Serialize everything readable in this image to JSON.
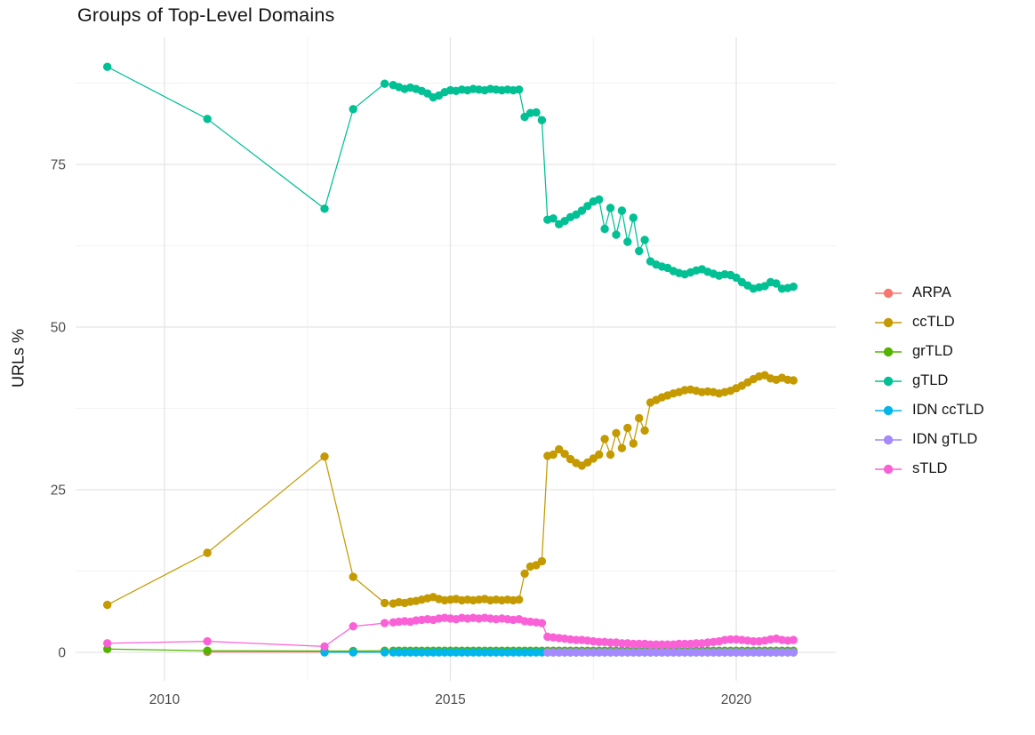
{
  "chart_data": {
    "type": "line",
    "title": "Groups of Top-Level Domains",
    "xlabel": "",
    "ylabel": "URLs %",
    "x_ticks": [
      2010,
      2015,
      2020
    ],
    "x_minor_ticks": [
      2012.5,
      2017.5
    ],
    "y_ticks": [
      0,
      25,
      50,
      75
    ],
    "y_minor_ticks": [
      12.5,
      37.5,
      62.5,
      87.5
    ],
    "xlim": [
      2008.45,
      2021.7
    ],
    "ylim": [
      -4.4,
      94.6
    ],
    "grid": true,
    "legend_position": "right",
    "axis_text_color": "#4d4d4d",
    "major_grid_color": "#e5e5e5",
    "minor_grid_color": "#f3f3f3",
    "series": [
      {
        "name": "ARPA",
        "color": "#F8766D",
        "x_head": [
          2010.75,
          2012.8,
          2013.3,
          2013.85
        ],
        "y_head": [
          0.05,
          0.05,
          0.05,
          0.05
        ],
        "flat": {
          "from": 2014.0,
          "to": 2021.0,
          "step": 0.1,
          "value": 0.05
        }
      },
      {
        "name": "ccTLD",
        "color": "#C49A00",
        "x_head": [
          2009.0,
          2010.75,
          2012.8,
          2013.3,
          2013.85
        ],
        "y_head": [
          7.3,
          15.3,
          30.1,
          11.6,
          7.6
        ],
        "dense": {
          "start": 2014.0,
          "step": 0.1,
          "y": [
            7.5,
            7.7,
            7.6,
            7.8,
            7.9,
            8.1,
            8.3,
            8.5,
            8.2,
            8.0,
            8.1,
            8.2,
            8.0,
            8.1,
            8.0,
            8.1,
            8.2,
            8.0,
            8.1,
            8.0,
            8.1,
            8.0,
            8.1,
            12.1,
            13.2,
            13.4,
            14.0,
            30.2,
            30.4,
            31.2,
            30.5,
            29.7,
            29.1,
            28.7,
            29.2,
            29.8,
            30.4,
            32.8,
            30.4,
            33.7,
            31.4,
            34.5,
            32.1,
            36.0,
            34.1,
            38.4,
            38.8,
            39.2,
            39.5,
            39.8,
            40.0,
            40.3,
            40.4,
            40.2,
            40.0,
            40.1,
            40.0,
            39.8,
            40.0,
            40.2,
            40.6,
            41.0,
            41.5,
            42.0,
            42.4,
            42.6,
            42.1,
            41.9,
            42.2,
            41.9,
            41.8
          ]
        }
      },
      {
        "name": "grTLD",
        "color": "#53B400",
        "x_head": [
          2009.0,
          2010.75,
          2012.8,
          2013.3,
          2013.85
        ],
        "y_head": [
          0.5,
          0.25,
          0.2,
          0.2,
          0.25
        ],
        "flat": {
          "from": 2014.0,
          "to": 2021.0,
          "step": 0.1,
          "value": 0.25
        }
      },
      {
        "name": "gTLD",
        "color": "#00C094",
        "x_head": [
          2009.0,
          2010.75,
          2012.8,
          2013.3,
          2013.85
        ],
        "y_head": [
          90.0,
          82.0,
          68.2,
          83.5,
          87.4
        ],
        "dense": {
          "start": 2014.0,
          "step": 0.1,
          "y": [
            87.2,
            86.9,
            86.6,
            86.8,
            86.6,
            86.3,
            85.9,
            85.3,
            85.6,
            86.1,
            86.4,
            86.3,
            86.5,
            86.4,
            86.6,
            86.5,
            86.4,
            86.6,
            86.5,
            86.4,
            86.5,
            86.4,
            86.5,
            82.3,
            82.9,
            83.0,
            81.8,
            66.5,
            66.7,
            65.8,
            66.3,
            66.9,
            67.3,
            67.9,
            68.6,
            69.3,
            69.6,
            65.1,
            68.3,
            64.2,
            67.9,
            63.1,
            66.8,
            61.7,
            63.4,
            60.1,
            59.6,
            59.3,
            59.1,
            58.6,
            58.3,
            58.1,
            58.4,
            58.7,
            58.9,
            58.5,
            58.2,
            57.9,
            58.1,
            58.0,
            57.6,
            56.9,
            56.4,
            55.9,
            56.1,
            56.3,
            56.9,
            56.7,
            55.9,
            56.0,
            56.2
          ]
        }
      },
      {
        "name": "IDN ccTLD",
        "color": "#00B6EB",
        "x_head": [
          2012.8,
          2013.3,
          2013.85
        ],
        "y_head": [
          0.0,
          0.0,
          0.0
        ],
        "flat": {
          "from": 2014.0,
          "to": 2021.0,
          "step": 0.1,
          "value": 0.0
        }
      },
      {
        "name": "IDN gTLD",
        "color": "#A58AFF",
        "x_head": [],
        "y_head": [],
        "flat": {
          "from": 2016.7,
          "to": 2021.0,
          "step": 0.1,
          "value": 0.0
        }
      },
      {
        "name": "sTLD",
        "color": "#FB61D7",
        "x_head": [
          2009.0,
          2010.75,
          2012.8,
          2013.3,
          2013.85
        ],
        "y_head": [
          1.4,
          1.7,
          0.9,
          4.0,
          4.5
        ],
        "dense": {
          "start": 2014.0,
          "step": 0.1,
          "y": [
            4.6,
            4.7,
            4.8,
            4.7,
            4.9,
            5.0,
            5.1,
            5.0,
            5.2,
            5.3,
            5.2,
            5.1,
            5.3,
            5.2,
            5.3,
            5.2,
            5.3,
            5.2,
            5.1,
            5.2,
            5.1,
            5.0,
            5.1,
            4.8,
            4.7,
            4.6,
            4.5,
            2.4,
            2.3,
            2.2,
            2.1,
            2.0,
            1.9,
            1.9,
            1.8,
            1.7,
            1.6,
            1.6,
            1.5,
            1.5,
            1.4,
            1.4,
            1.3,
            1.3,
            1.3,
            1.2,
            1.2,
            1.2,
            1.2,
            1.2,
            1.3,
            1.3,
            1.3,
            1.4,
            1.4,
            1.5,
            1.6,
            1.7,
            1.9,
            2.0,
            2.0,
            1.9,
            1.8,
            1.7,
            1.7,
            1.8,
            2.0,
            2.1,
            1.9,
            1.8,
            1.9
          ]
        }
      }
    ]
  }
}
